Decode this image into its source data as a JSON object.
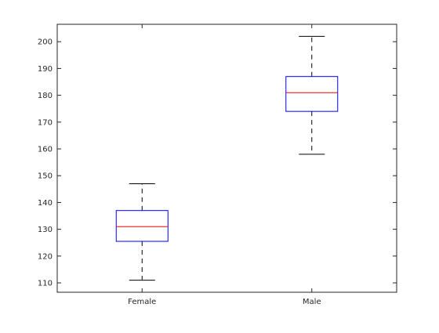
{
  "chart_data": {
    "type": "box",
    "categories": [
      "Female",
      "Male"
    ],
    "boxes": [
      {
        "label": "Female",
        "min": 111,
        "q1": 125.5,
        "median": 131,
        "q3": 137,
        "max": 147
      },
      {
        "label": "Male",
        "min": 158,
        "q1": 174,
        "median": 181,
        "q3": 187,
        "max": 202
      }
    ],
    "ylim": [
      106.5,
      206.5
    ],
    "yticks": [
      110,
      120,
      130,
      140,
      150,
      160,
      170,
      180,
      190,
      200
    ],
    "title": "",
    "xlabel": "",
    "ylabel": "",
    "grid": false,
    "colors": {
      "box": "#0000ff",
      "median": "#ff0000",
      "whisker": "#000000",
      "axis": "#262626"
    }
  }
}
